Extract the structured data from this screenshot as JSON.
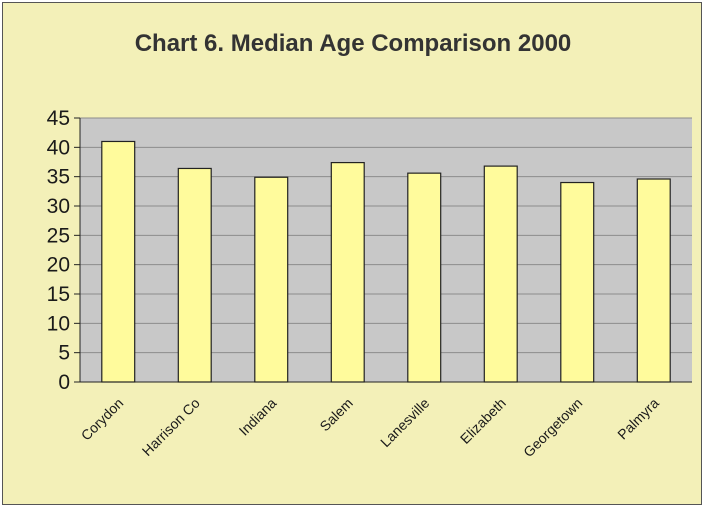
{
  "colors": {
    "frame": "#f3f0b8",
    "plot_area": "#c8c8c8",
    "bar_fill": "#fffb9c",
    "bar_stroke": "#222222",
    "gridline": "#8c8c8c"
  },
  "chart_data": {
    "type": "bar",
    "title": "Chart 6. Median Age Comparison 2000",
    "xlabel": "",
    "ylabel": "",
    "categories": [
      "Corydon",
      "Harrison Co",
      "Indiana",
      "Salem",
      "Lanesville",
      "Elizabeth",
      "Georgetown",
      "Palmyra"
    ],
    "values": [
      41.0,
      36.4,
      34.9,
      37.4,
      35.6,
      36.8,
      34.0,
      34.6
    ],
    "ylim": [
      0,
      45
    ],
    "yticks": [
      0,
      5,
      10,
      15,
      20,
      25,
      30,
      35,
      40,
      45
    ],
    "grid": true,
    "legend": "none"
  }
}
